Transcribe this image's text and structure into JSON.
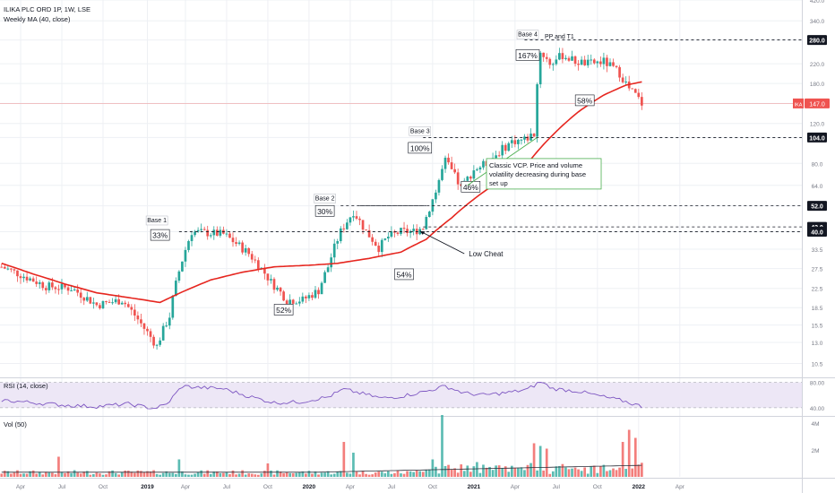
{
  "header": {
    "symbol_line": "ILIKA PLC ORD 1P, 1W, LSE",
    "ma_label": "Weekly MA (40, close)"
  },
  "colors": {
    "up": "#26a69a",
    "down": "#ef5350",
    "ma": "#e6261f",
    "rsi": "#7e57c2",
    "rsi_band": "#ede7f6",
    "grid": "#eef0f4",
    "axis_text": "#787b86"
  },
  "chart_data": [
    {
      "type": "candlestick",
      "title": "ILIKA PLC ORD 1P, 1W, LSE",
      "price_scale": "log",
      "ylim": [
        9.2,
        420
      ],
      "x_tick_labels": [
        "Apr",
        "Jul",
        "Oct",
        "2019",
        "Apr",
        "Jul",
        "Oct",
        "2020",
        "Apr",
        "Jul",
        "Oct",
        "2021",
        "Apr",
        "Jul",
        "Oct",
        "2022",
        "Apr"
      ],
      "y_tick_labels": [
        "10.5",
        "13.0",
        "15.5",
        "18.5",
        "22.5",
        "27.5",
        "33.5",
        "40.0",
        "52.0",
        "64.0",
        "80.0",
        "104.0",
        "120.0",
        "147.0",
        "180.0",
        "220.0",
        "280.0",
        "340.0",
        "420.0"
      ],
      "price_anchors": [
        {
          "week": 0,
          "price": 28
        },
        {
          "week": 14,
          "price": 23
        },
        {
          "week": 22,
          "price": 22.5
        },
        {
          "week": 30,
          "price": 19
        },
        {
          "week": 38,
          "price": 20
        },
        {
          "week": 45,
          "price": 15
        },
        {
          "week": 49,
          "price": 12.5
        },
        {
          "week": 53,
          "price": 17
        },
        {
          "week": 57,
          "price": 30
        },
        {
          "week": 60,
          "price": 40
        },
        {
          "week": 70,
          "price": 39
        },
        {
          "week": 78,
          "price": 32
        },
        {
          "week": 85,
          "price": 24
        },
        {
          "week": 90,
          "price": 20
        },
        {
          "week": 95,
          "price": 20
        },
        {
          "week": 100,
          "price": 22
        },
        {
          "week": 103,
          "price": 28
        },
        {
          "week": 107,
          "price": 40
        },
        {
          "week": 111,
          "price": 49
        },
        {
          "week": 115,
          "price": 40
        },
        {
          "week": 119,
          "price": 34
        },
        {
          "week": 122,
          "price": 38
        },
        {
          "week": 126,
          "price": 40
        },
        {
          "week": 130,
          "price": 40
        },
        {
          "week": 133,
          "price": 42
        },
        {
          "week": 137,
          "price": 60
        },
        {
          "week": 140,
          "price": 82
        },
        {
          "week": 143,
          "price": 70
        },
        {
          "week": 145,
          "price": 62
        },
        {
          "week": 149,
          "price": 75
        },
        {
          "week": 153,
          "price": 80
        },
        {
          "week": 157,
          "price": 90
        },
        {
          "week": 161,
          "price": 100
        },
        {
          "week": 165,
          "price": 102
        },
        {
          "week": 168,
          "price": 108
        },
        {
          "week": 170,
          "price": 250
        },
        {
          "week": 173,
          "price": 220
        },
        {
          "week": 177,
          "price": 240
        },
        {
          "week": 181,
          "price": 225
        },
        {
          "week": 185,
          "price": 220
        },
        {
          "week": 190,
          "price": 225
        },
        {
          "week": 195,
          "price": 200
        },
        {
          "week": 198,
          "price": 170
        },
        {
          "week": 200,
          "price": 160
        },
        {
          "week": 202,
          "price": 147
        }
      ],
      "ma_period": 40,
      "ma_anchors": [
        {
          "week": 0,
          "value": 29
        },
        {
          "week": 10,
          "value": 26
        },
        {
          "week": 20,
          "value": 23.5
        },
        {
          "week": 30,
          "value": 21.5
        },
        {
          "week": 40,
          "value": 20.5
        },
        {
          "week": 50,
          "value": 19.5
        },
        {
          "week": 58,
          "value": 22
        },
        {
          "week": 66,
          "value": 24.5
        },
        {
          "week": 76,
          "value": 26.5
        },
        {
          "week": 86,
          "value": 28
        },
        {
          "week": 98,
          "value": 28.5
        },
        {
          "week": 106,
          "value": 29
        },
        {
          "week": 116,
          "value": 30.5
        },
        {
          "week": 126,
          "value": 32.5
        },
        {
          "week": 134,
          "value": 37
        },
        {
          "week": 142,
          "value": 46
        },
        {
          "week": 150,
          "value": 57
        },
        {
          "week": 158,
          "value": 68
        },
        {
          "week": 166,
          "value": 80
        },
        {
          "week": 174,
          "value": 107
        },
        {
          "week": 182,
          "value": 135
        },
        {
          "week": 190,
          "value": 160
        },
        {
          "week": 197,
          "value": 177
        },
        {
          "week": 202,
          "value": 183
        }
      ],
      "levels": [
        {
          "label": "280.0",
          "price": 280
        },
        {
          "label": "104.0",
          "price": 104
        },
        {
          "label": "52.0",
          "price": 52
        },
        {
          "label": "42.0",
          "price": 42
        },
        {
          "label": "40.0",
          "price": 40
        }
      ],
      "last_price": {
        "symbol": "IKA",
        "label": "147.0",
        "price": 147
      },
      "annotations": {
        "bases": [
          {
            "text": "Base 1",
            "week": 49,
            "price": 44
          },
          {
            "text": "Base 2",
            "week": 102,
            "price": 55
          },
          {
            "text": "Base 3",
            "week": 132,
            "price": 109
          },
          {
            "text": "Base 4",
            "week": 166,
            "price": 290
          }
        ],
        "percent_boxes": [
          {
            "text": "33%",
            "week": 50,
            "price": 38
          },
          {
            "text": "30%",
            "week": 102,
            "price": 48.5
          },
          {
            "text": "100%",
            "week": 132,
            "price": 92
          },
          {
            "text": "167%",
            "week": 166,
            "price": 236
          },
          {
            "text": "58%",
            "week": 184,
            "price": 149
          },
          {
            "text": "46%",
            "week": 148,
            "price": 62
          },
          {
            "text": "54%",
            "week": 127,
            "price": 25.5
          },
          {
            "text": "52%",
            "week": 89,
            "price": 17.8
          }
        ],
        "pp_t1": "PP and T1",
        "vcp_note": [
          "Classic VCP. Price and volume",
          "volatility decreasing during base",
          "set up"
        ],
        "low_cheat": "Low Cheat"
      }
    },
    {
      "type": "line",
      "title": "RSI (14, close)",
      "ylim": [
        30,
        85
      ],
      "band": [
        40,
        80
      ],
      "y_tick_labels": [
        "80.00",
        "40.00"
      ],
      "anchors": [
        {
          "week": 0,
          "value": 52
        },
        {
          "week": 10,
          "value": 48
        },
        {
          "week": 20,
          "value": 44
        },
        {
          "week": 30,
          "value": 42
        },
        {
          "week": 40,
          "value": 46
        },
        {
          "week": 48,
          "value": 39
        },
        {
          "week": 52,
          "value": 45
        },
        {
          "week": 57,
          "value": 74
        },
        {
          "week": 62,
          "value": 72
        },
        {
          "week": 70,
          "value": 70
        },
        {
          "week": 78,
          "value": 58
        },
        {
          "week": 86,
          "value": 48
        },
        {
          "week": 94,
          "value": 49
        },
        {
          "week": 103,
          "value": 57
        },
        {
          "week": 108,
          "value": 69
        },
        {
          "week": 114,
          "value": 62
        },
        {
          "week": 120,
          "value": 55
        },
        {
          "week": 126,
          "value": 58
        },
        {
          "week": 134,
          "value": 66
        },
        {
          "week": 140,
          "value": 74
        },
        {
          "week": 146,
          "value": 63
        },
        {
          "week": 152,
          "value": 60
        },
        {
          "week": 160,
          "value": 64
        },
        {
          "week": 166,
          "value": 69
        },
        {
          "week": 170,
          "value": 81
        },
        {
          "week": 174,
          "value": 70
        },
        {
          "week": 182,
          "value": 66
        },
        {
          "week": 190,
          "value": 57
        },
        {
          "week": 196,
          "value": 51
        },
        {
          "week": 202,
          "value": 42
        }
      ]
    },
    {
      "type": "bar",
      "title": "Vol (50)",
      "ylim": [
        0,
        4.4
      ],
      "unit": "M",
      "y_tick_labels": [
        "4M",
        "2M"
      ],
      "spikes": [
        {
          "week": 18,
          "value": 1.5
        },
        {
          "week": 56,
          "value": 1.3
        },
        {
          "week": 84,
          "value": 1.0
        },
        {
          "week": 108,
          "value": 2.6
        },
        {
          "week": 111,
          "value": 1.8
        },
        {
          "week": 136,
          "value": 1.3
        },
        {
          "week": 139,
          "value": 4.6
        },
        {
          "week": 150,
          "value": 1.1
        },
        {
          "week": 168,
          "value": 2.5
        },
        {
          "week": 170,
          "value": 2.3
        },
        {
          "week": 172,
          "value": 2.1
        },
        {
          "week": 196,
          "value": 2.6
        },
        {
          "week": 198,
          "value": 3.5
        },
        {
          "week": 200,
          "value": 2.9
        }
      ]
    }
  ]
}
